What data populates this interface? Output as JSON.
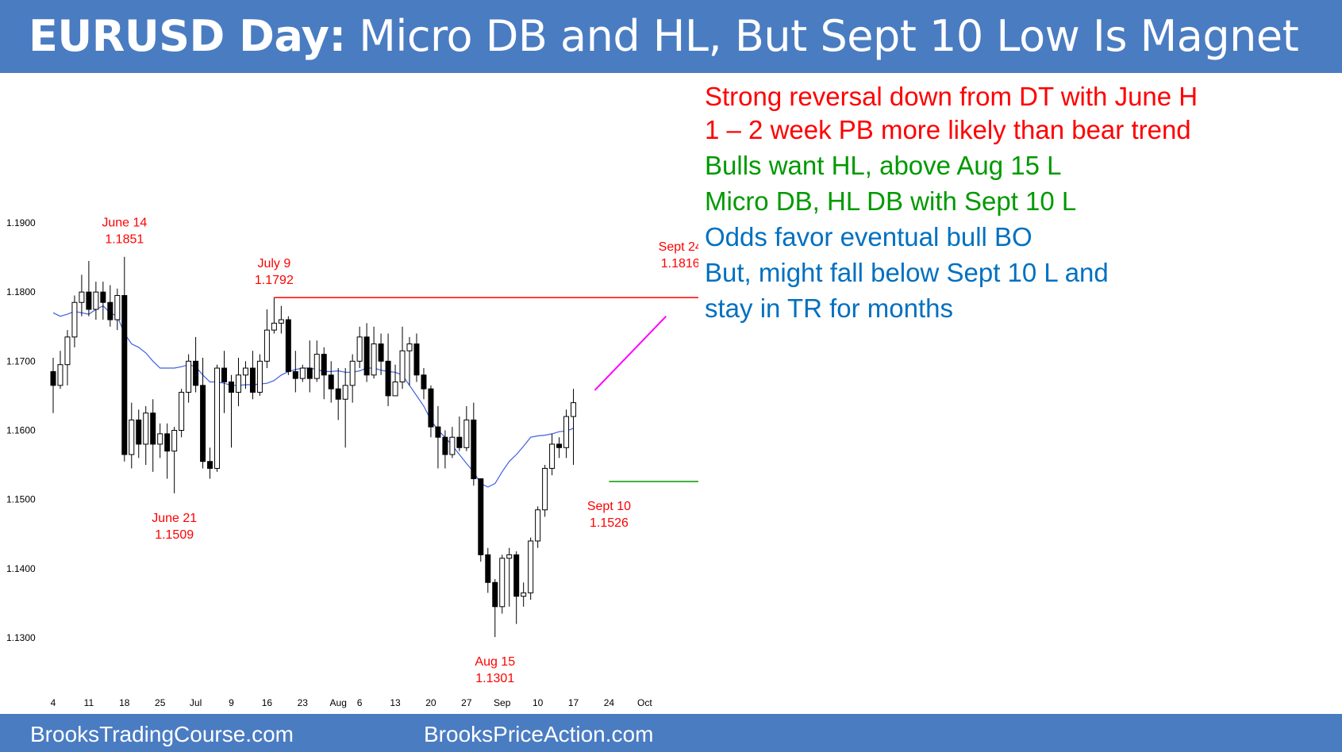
{
  "title_bold": "EURUSD Day:",
  "title_rest": " Micro DB and HL, But Sept 10 Low Is Magnet",
  "footer": {
    "left": "BrooksTradingCourse.com",
    "right": "BrooksPriceAction.com"
  },
  "notes": [
    {
      "text": "Strong reversal down from DT with June H",
      "color": "red"
    },
    {
      "text": "1 – 2 week PB more likely than bear trend",
      "color": "red"
    },
    {
      "text": "Bulls want HL, above Aug 15 L",
      "color": "green"
    },
    {
      "text": "Micro DB, HL DB with Sept 10 L",
      "color": "green"
    },
    {
      "text": "Odds favor eventual bull BO",
      "color": "blue"
    },
    {
      "text": "But, might fall below Sept 10 L and",
      "color": "blue"
    },
    {
      "text": "stay in TR for months",
      "color": "blue"
    }
  ],
  "chart_data": {
    "type": "candlestick",
    "ylim": [
      1.1245,
      1.192
    ],
    "yticks": [
      "1.1900",
      "1.1800",
      "1.1700",
      "1.1600",
      "1.1500",
      "1.1400",
      "1.1300"
    ],
    "xticks": [
      {
        "label": "4",
        "i": 0
      },
      {
        "label": "11",
        "i": 5
      },
      {
        "label": "18",
        "i": 10
      },
      {
        "label": "25",
        "i": 15
      },
      {
        "label": "Jul",
        "i": 20
      },
      {
        "label": "9",
        "i": 25
      },
      {
        "label": "16",
        "i": 30
      },
      {
        "label": "23",
        "i": 35
      },
      {
        "label": "Aug",
        "i": 40
      },
      {
        "label": "6",
        "i": 43
      },
      {
        "label": "13",
        "i": 48
      },
      {
        "label": "20",
        "i": 53
      },
      {
        "label": "27",
        "i": 58
      },
      {
        "label": "Sep",
        "i": 63
      },
      {
        "label": "10",
        "i": 68
      },
      {
        "label": "17",
        "i": 73
      },
      {
        "label": "24",
        "i": 78
      },
      {
        "label": "Oct",
        "i": 83
      }
    ],
    "candles": [
      [
        1.1685,
        1.1665,
        1.1705,
        1.1625
      ],
      [
        1.1665,
        1.1695,
        1.1715,
        1.166
      ],
      [
        1.1695,
        1.1735,
        1.1745,
        1.1665
      ],
      [
        1.1735,
        1.1785,
        1.1795,
        1.172
      ],
      [
        1.1785,
        1.18,
        1.1825,
        1.1765
      ],
      [
        1.18,
        1.1775,
        1.1845,
        1.1765
      ],
      [
        1.1775,
        1.18,
        1.1815,
        1.176
      ],
      [
        1.18,
        1.1785,
        1.1815,
        1.176
      ],
      [
        1.1785,
        1.176,
        1.181,
        1.175
      ],
      [
        1.176,
        1.1795,
        1.1805,
        1.1745
      ],
      [
        1.1795,
        1.1565,
        1.1851,
        1.1555
      ],
      [
        1.1565,
        1.1615,
        1.164,
        1.1545
      ],
      [
        1.1615,
        1.158,
        1.163,
        1.156
      ],
      [
        1.158,
        1.1625,
        1.1635,
        1.155
      ],
      [
        1.1625,
        1.158,
        1.1645,
        1.154
      ],
      [
        1.158,
        1.1595,
        1.161,
        1.156
      ],
      [
        1.1595,
        1.157,
        1.161,
        1.153
      ],
      [
        1.157,
        1.16,
        1.1605,
        1.1509
      ],
      [
        1.16,
        1.1655,
        1.166,
        1.159
      ],
      [
        1.1655,
        1.17,
        1.171,
        1.164
      ],
      [
        1.17,
        1.1665,
        1.1735,
        1.1655
      ],
      [
        1.1665,
        1.1555,
        1.1705,
        1.1545
      ],
      [
        1.1555,
        1.1545,
        1.1575,
        1.153
      ],
      [
        1.1545,
        1.169,
        1.1695,
        1.154
      ],
      [
        1.169,
        1.167,
        1.1715,
        1.1625
      ],
      [
        1.167,
        1.1655,
        1.168,
        1.1575
      ],
      [
        1.1655,
        1.168,
        1.1705,
        1.1635
      ],
      [
        1.168,
        1.169,
        1.17,
        1.166
      ],
      [
        1.169,
        1.1655,
        1.1715,
        1.1645
      ],
      [
        1.1655,
        1.17,
        1.171,
        1.165
      ],
      [
        1.17,
        1.1745,
        1.1775,
        1.169
      ],
      [
        1.1745,
        1.1755,
        1.1792,
        1.174
      ],
      [
        1.1755,
        1.176,
        1.178,
        1.174
      ],
      [
        1.176,
        1.1685,
        1.1765,
        1.168
      ],
      [
        1.1685,
        1.1675,
        1.1715,
        1.1655
      ],
      [
        1.1675,
        1.169,
        1.1695,
        1.167
      ],
      [
        1.169,
        1.1675,
        1.173,
        1.1655
      ],
      [
        1.1675,
        1.171,
        1.173,
        1.167
      ],
      [
        1.171,
        1.168,
        1.172,
        1.1645
      ],
      [
        1.168,
        1.166,
        1.17,
        1.164
      ],
      [
        1.166,
        1.1645,
        1.169,
        1.1615
      ],
      [
        1.1645,
        1.1665,
        1.169,
        1.1575
      ],
      [
        1.1665,
        1.17,
        1.171,
        1.164
      ],
      [
        1.17,
        1.1735,
        1.175,
        1.169
      ],
      [
        1.1735,
        1.168,
        1.1755,
        1.167
      ],
      [
        1.168,
        1.1725,
        1.175,
        1.1675
      ],
      [
        1.1725,
        1.17,
        1.174,
        1.168
      ],
      [
        1.17,
        1.165,
        1.174,
        1.1635
      ],
      [
        1.165,
        1.167,
        1.1695,
        1.165
      ],
      [
        1.167,
        1.1715,
        1.175,
        1.166
      ],
      [
        1.1715,
        1.1725,
        1.1735,
        1.1665
      ],
      [
        1.1725,
        1.168,
        1.174,
        1.167
      ],
      [
        1.168,
        1.166,
        1.169,
        1.1645
      ],
      [
        1.166,
        1.1605,
        1.1665,
        1.159
      ],
      [
        1.1605,
        1.159,
        1.1635,
        1.1545
      ],
      [
        1.159,
        1.1565,
        1.16,
        1.1545
      ],
      [
        1.1565,
        1.159,
        1.1605,
        1.156
      ],
      [
        1.159,
        1.1575,
        1.162,
        1.157
      ],
      [
        1.1575,
        1.1615,
        1.1635,
        1.157
      ],
      [
        1.1615,
        1.153,
        1.164,
        1.152
      ],
      [
        1.153,
        1.142,
        1.153,
        1.141
      ],
      [
        1.142,
        1.138,
        1.143,
        1.1365
      ],
      [
        1.138,
        1.1345,
        1.1385,
        1.1301
      ],
      [
        1.1345,
        1.1415,
        1.142,
        1.1335
      ],
      [
        1.1415,
        1.142,
        1.143,
        1.1345
      ],
      [
        1.142,
        1.136,
        1.1425,
        1.132
      ],
      [
        1.136,
        1.1365,
        1.138,
        1.1345
      ],
      [
        1.1365,
        1.144,
        1.1445,
        1.1355
      ],
      [
        1.144,
        1.1485,
        1.149,
        1.143
      ],
      [
        1.1485,
        1.1545,
        1.155,
        1.1475
      ],
      [
        1.1545,
        1.158,
        1.1595,
        1.1535
      ],
      [
        1.158,
        1.1575,
        1.159,
        1.156
      ],
      [
        1.1575,
        1.162,
        1.163,
        1.156
      ],
      [
        1.162,
        1.164,
        1.166,
        1.155
      ]
    ],
    "ma": [
      1.177,
      1.1765,
      1.1768,
      1.1772,
      1.177,
      1.1768,
      1.1775,
      1.178,
      1.177,
      1.1765,
      1.174,
      1.1725,
      1.172,
      1.1712,
      1.17,
      1.169,
      1.169,
      1.169,
      1.1692,
      1.1695,
      1.1692,
      1.168,
      1.167,
      1.167,
      1.1668,
      1.1665,
      1.1665,
      1.1666,
      1.1666,
      1.1667,
      1.1668,
      1.1672,
      1.168,
      1.1685,
      1.1688,
      1.169,
      1.169,
      1.1688,
      1.1685,
      1.1685,
      1.1686,
      1.1684,
      1.1684,
      1.1686,
      1.169,
      1.169,
      1.1687,
      1.1685,
      1.1684,
      1.168,
      1.1665,
      1.165,
      1.1635,
      1.1615,
      1.16,
      1.159,
      1.1578,
      1.1565,
      1.1552,
      1.154,
      1.1523,
      1.1518,
      1.1523,
      1.154,
      1.1555,
      1.1565,
      1.1577,
      1.159,
      1.1592,
      1.1593,
      1.1595,
      1.1598,
      1.1599,
      1.1603
    ],
    "labels": [
      {
        "date": "June 14",
        "price": "1.1851",
        "i": 10,
        "pos": "above"
      },
      {
        "date": "July 9",
        "price": "1.1792",
        "i": 31,
        "pos": "above"
      },
      {
        "date": "June 21",
        "price": "1.1509",
        "i": 17,
        "pos": "below"
      },
      {
        "date": "Aug 15",
        "price": "1.1301",
        "i": 62,
        "pos": "below"
      },
      {
        "date": "Sept 10",
        "price": "1.1526",
        "i": 78,
        "pos": "below"
      },
      {
        "date": "Sept 24",
        "price": "1.1816",
        "i": 88,
        "pos": "above"
      }
    ],
    "lines": [
      {
        "name": "resistance",
        "y": 1.1792,
        "from": 31,
        "to": 95,
        "color": "#ff0000"
      },
      {
        "name": "support",
        "y": 1.1526,
        "from": 78,
        "to": 95,
        "color": "#009900"
      },
      {
        "name": "trendline",
        "y1": 1.1658,
        "y2": 1.1765,
        "from": 76,
        "to": 86,
        "color": "#ff00ff"
      }
    ]
  }
}
